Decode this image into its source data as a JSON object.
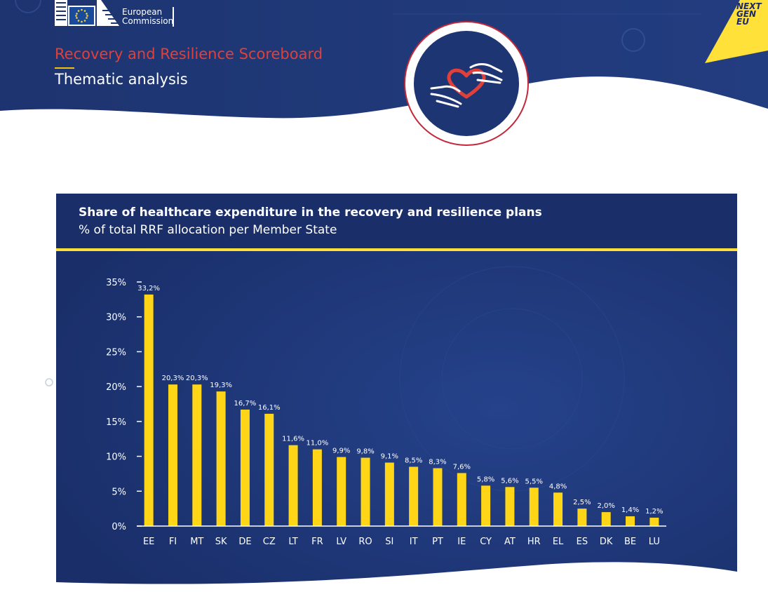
{
  "branding": {
    "logo_line1": "European",
    "logo_line2": "Commission",
    "ngeu_line1": "NEXT",
    "ngeu_line2": "GEN",
    "ngeu_line3": "EU"
  },
  "header": {
    "title": "Recovery and Resilience Scoreboard",
    "subtitle": "Thematic analysis",
    "hero_icon": "hands-heart-icon"
  },
  "colors": {
    "navy": "#1e3574",
    "navy_dark": "#172a60",
    "accent_red": "#e0403a",
    "bar_yellow": "#ffd617",
    "white": "#ffffff"
  },
  "chart_data": {
    "type": "bar",
    "title": "Share of healthcare expenditure in the recovery and resilience plans",
    "subtitle": "% of total RRF allocation per Member State",
    "categories": [
      "EE",
      "FI",
      "MT",
      "SK",
      "DE",
      "CZ",
      "LT",
      "FR",
      "LV",
      "RO",
      "SI",
      "IT",
      "PT",
      "IE",
      "CY",
      "AT",
      "HR",
      "EL",
      "ES",
      "DK",
      "BE",
      "LU"
    ],
    "values": [
      33.2,
      20.3,
      20.3,
      19.3,
      16.7,
      16.1,
      11.6,
      11.0,
      9.9,
      9.8,
      9.1,
      8.5,
      8.3,
      7.6,
      5.8,
      5.6,
      5.5,
      4.8,
      2.5,
      2.0,
      1.4,
      1.2
    ],
    "value_labels": [
      "33,2%",
      "20,3%",
      "20,3%",
      "19,3%",
      "16,7%",
      "16,1%",
      "11,6%",
      "11,0%",
      "9,9%",
      "9,8%",
      "9,1%",
      "8,5%",
      "8,3%",
      "7,6%",
      "5,8%",
      "5,6%",
      "5,5%",
      "4,8%",
      "2,5%",
      "2,0%",
      "1,4%",
      "1,2%"
    ],
    "yticks": [
      0,
      5,
      10,
      15,
      20,
      25,
      30,
      35
    ],
    "ytick_labels": [
      "0%",
      "5%",
      "10%",
      "15%",
      "20%",
      "25%",
      "30%",
      "35%"
    ],
    "ylim": [
      0,
      35
    ],
    "grid": false,
    "legend": "none"
  }
}
